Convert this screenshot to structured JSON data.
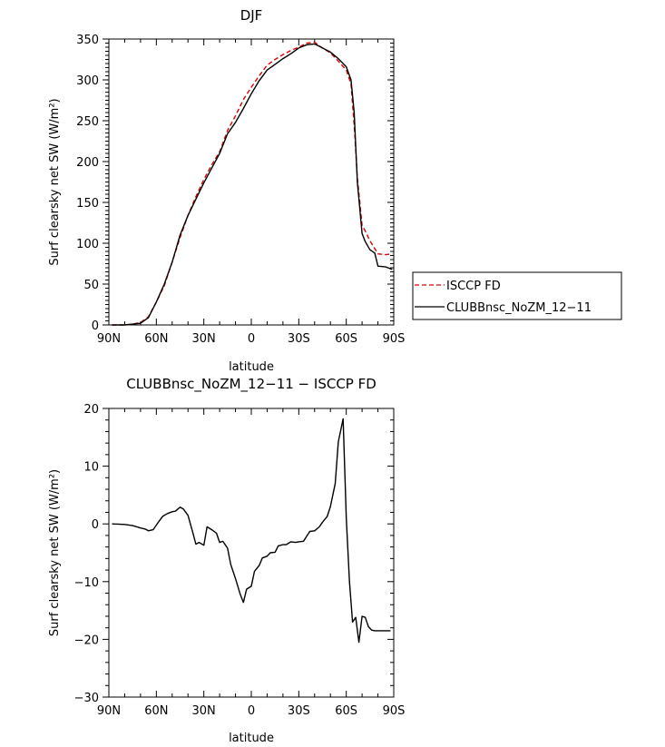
{
  "chart_data": [
    {
      "type": "line",
      "title": "DJF",
      "xlabel": "latitude",
      "ylabel": "Surf clearsky net SW (W/m²)",
      "xlim": [
        90,
        -90
      ],
      "ylim": [
        0,
        350
      ],
      "x_ticks": [
        90,
        60,
        30,
        0,
        -30,
        -60,
        -90
      ],
      "x_tick_labels": [
        "90N",
        "60N",
        "30N",
        "0",
        "30S",
        "60S",
        "90S"
      ],
      "y_ticks": [
        0,
        50,
        100,
        150,
        200,
        250,
        300,
        350
      ],
      "y_tick_labels": [
        "0",
        "50",
        "100",
        "150",
        "200",
        "250",
        "300",
        "350"
      ],
      "grid": false,
      "legend": "right",
      "series": [
        {
          "name": "ISCCP FD",
          "color": "#dd0000",
          "dash": "dashed",
          "x": [
            88,
            80,
            75,
            70,
            65,
            60,
            55,
            50,
            45,
            40,
            35,
            30,
            25,
            20,
            15,
            10,
            5,
            0,
            -5,
            -10,
            -15,
            -20,
            -25,
            -30,
            -35,
            -40,
            -45,
            -50,
            -55,
            -60,
            -63,
            -65,
            -67,
            -70,
            -72,
            -75,
            -80,
            -85,
            -89
          ],
          "y": [
            0,
            0,
            1,
            3,
            10,
            28,
            48,
            77,
            107,
            134,
            157,
            178,
            196,
            212,
            238,
            256,
            276,
            291,
            305,
            318,
            325,
            331,
            336,
            340,
            345,
            346,
            339,
            333,
            323,
            312,
            295,
            245,
            180,
            122,
            115,
            103,
            87,
            86,
            87
          ]
        },
        {
          "name": "CLUBBnsc_NoZM_12−11",
          "color": "#000000",
          "dash": "solid",
          "x": [
            88,
            80,
            75,
            70,
            65,
            60,
            55,
            50,
            45,
            40,
            35,
            30,
            25,
            20,
            15,
            10,
            5,
            0,
            -5,
            -10,
            -15,
            -20,
            -25,
            -30,
            -35,
            -40,
            -45,
            -50,
            -55,
            -60,
            -63,
            -65,
            -67,
            -70,
            -72,
            -75,
            -78,
            -80,
            -85,
            -89
          ],
          "y": [
            0,
            0,
            1,
            2,
            9,
            28,
            50,
            77,
            110,
            134,
            154,
            174,
            192,
            210,
            234,
            248,
            265,
            283,
            299,
            312,
            319,
            326,
            332,
            339,
            343,
            344,
            339,
            334,
            326,
            316,
            300,
            260,
            175,
            112,
            102,
            92,
            88,
            72,
            71,
            68
          ]
        }
      ]
    },
    {
      "type": "line",
      "title": "CLUBBnsc_NoZM_12−11 − ISCCP FD",
      "xlabel": "latitude",
      "ylabel": "Surf clearsky net SW (W/m²)",
      "xlim": [
        90,
        -90
      ],
      "ylim": [
        -30,
        20
      ],
      "x_ticks": [
        90,
        60,
        30,
        0,
        -30,
        -60,
        -90
      ],
      "x_tick_labels": [
        "90N",
        "60N",
        "30N",
        "0",
        "30S",
        "60S",
        "90S"
      ],
      "y_ticks": [
        -30,
        -20,
        -10,
        0,
        10,
        20
      ],
      "y_tick_labels": [
        "−30",
        "−20",
        "−10",
        "0",
        "10",
        "20"
      ],
      "grid": false,
      "series": [
        {
          "color": "#000000",
          "dash": "solid",
          "x": [
            88,
            80,
            75,
            70,
            67,
            65,
            62,
            59,
            56,
            53,
            50,
            48,
            45,
            43,
            40,
            37,
            35,
            33,
            30,
            28,
            25,
            22,
            20,
            18,
            15,
            13,
            10,
            7,
            5,
            3,
            0,
            -2,
            -5,
            -7,
            -10,
            -12,
            -15,
            -17,
            -20,
            -22,
            -25,
            -28,
            -30,
            -33,
            -35,
            -37,
            -40,
            -43,
            -45,
            -48,
            -50,
            -53,
            -55,
            -58,
            -60,
            -62,
            -64,
            -66,
            -68,
            -70,
            -72,
            -74,
            -76,
            -78,
            -80,
            -82,
            -84,
            -86,
            -88
          ],
          "y": [
            0,
            -0.1,
            -0.3,
            -0.7,
            -0.9,
            -1.2,
            -1,
            0.2,
            1.3,
            1.8,
            2.1,
            2.2,
            2.9,
            2.6,
            1.5,
            -1.5,
            -3.5,
            -3.2,
            -3.7,
            -0.5,
            -1,
            -1.6,
            -3.2,
            -3,
            -4.2,
            -7,
            -9.5,
            -12.2,
            -13.6,
            -11.3,
            -10.8,
            -8.2,
            -7.2,
            -5.9,
            -5.6,
            -5,
            -4.9,
            -3.8,
            -3.6,
            -3.6,
            -3.1,
            -3.2,
            -3.1,
            -3,
            -2.1,
            -1.3,
            -1.2,
            -0.5,
            0.3,
            1.3,
            3,
            7,
            14.2,
            18.2,
            1,
            -10,
            -17,
            -16.2,
            -20.5,
            -16,
            -16.2,
            -17.8,
            -18.4,
            -18.5,
            -18.5,
            -18.5,
            -18.5,
            -18.5,
            -18.5
          ]
        }
      ]
    }
  ]
}
